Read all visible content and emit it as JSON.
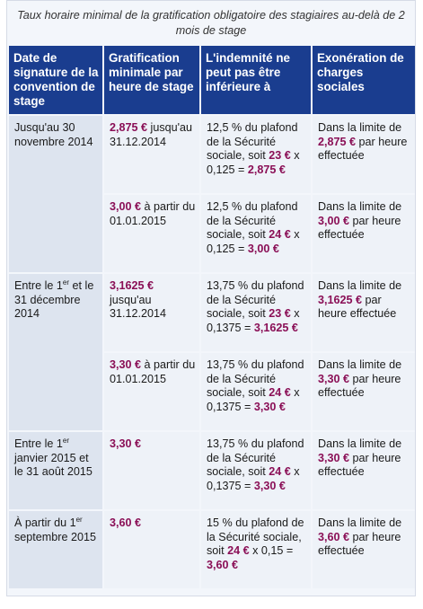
{
  "caption": "Taux horaire minimal de la gratification obligatoire des stagiaires au-delà de 2 mois de stage",
  "headers": [
    "Date de signature de la convention de stage",
    "Gratification minimale par heure de stage",
    "L'indemnité ne peut pas être inférieure à",
    "Exonération de charges sociales"
  ],
  "periods": [
    {
      "label": "Jusqu'au 30 novembre 2014"
    },
    {
      "label_pre": "Entre le 1",
      "label_sup": "er",
      "label_post": " et le 31 décembre 2014"
    },
    {
      "label_pre": "Entre le 1",
      "label_sup": "er",
      "label_post": " janvier 2015 et le 31 août 2015"
    },
    {
      "label_pre": "À partir du 1",
      "label_sup": "er",
      "label_post": " septembre 2015"
    }
  ],
  "rows": [
    {
      "grat_amount": "2,875 €",
      "grat_text": " jusqu'au 31.12.2014",
      "ind_pre": "12,5 % du plafond de la Sécurité sociale, soit ",
      "ind_base": "23 €",
      "ind_mid": " x 0,125 = ",
      "ind_result": "2,875 €",
      "exo_pre": "Dans la limite de ",
      "exo_amount": "2,875 €",
      "exo_post": " par heure effectuée"
    },
    {
      "grat_amount": "3,00 €",
      "grat_text": " à partir du 01.01.2015",
      "ind_pre": "12,5 % du plafond de la Sécurité sociale, soit ",
      "ind_base": "24 €",
      "ind_mid": " x 0,125 = ",
      "ind_result": "3,00 €",
      "exo_pre": "Dans la limite de ",
      "exo_amount": "3,00 €",
      "exo_post": " par heure effectuée"
    },
    {
      "grat_amount": "3,1625 €",
      "grat_text": " jusqu'au 31.12.2014",
      "ind_pre": "13,75 % du plafond de la Sécurité sociale, soit ",
      "ind_base": "23 €",
      "ind_mid": " x 0,1375 = ",
      "ind_result": "3,1625 €",
      "exo_pre": "Dans la limite de ",
      "exo_amount": "3,1625 €",
      "exo_post": " par heure effectuée"
    },
    {
      "grat_amount": "3,30 €",
      "grat_text": " à partir du 01.01.2015",
      "ind_pre": "13,75 % du plafond de la Sécurité sociale, soit ",
      "ind_base": "24 €",
      "ind_mid": " x 0,1375 = ",
      "ind_result": "3,30 €",
      "exo_pre": "Dans la limite de ",
      "exo_amount": "3,30 €",
      "exo_post": " par heure effectuée"
    },
    {
      "grat_amount": "3,30 €",
      "grat_text": "",
      "ind_pre": "13,75 % du plafond de la Sécurité sociale, soit ",
      "ind_base": "24 €",
      "ind_mid": " x 0,1375 = ",
      "ind_result": "3,30 €",
      "exo_pre": "Dans la limite de ",
      "exo_amount": "3,30 €",
      "exo_post": " par heure effectuée"
    },
    {
      "grat_amount": "3,60 €",
      "grat_text": "",
      "ind_pre": "15 % du plafond de la Sécurité sociale, soit ",
      "ind_base": "24 €",
      "ind_mid": " x 0,15 = ",
      "ind_result": "3,60 €",
      "exo_pre": "Dans la limite de ",
      "exo_amount": "3,60 €",
      "exo_post": " par heure effectuée"
    }
  ],
  "colors": {
    "header_bg": "#1a3d8f",
    "amount": "#8a0f56",
    "first_col_bg": "#dde4ef",
    "cell_bg": "#eef2f8"
  }
}
